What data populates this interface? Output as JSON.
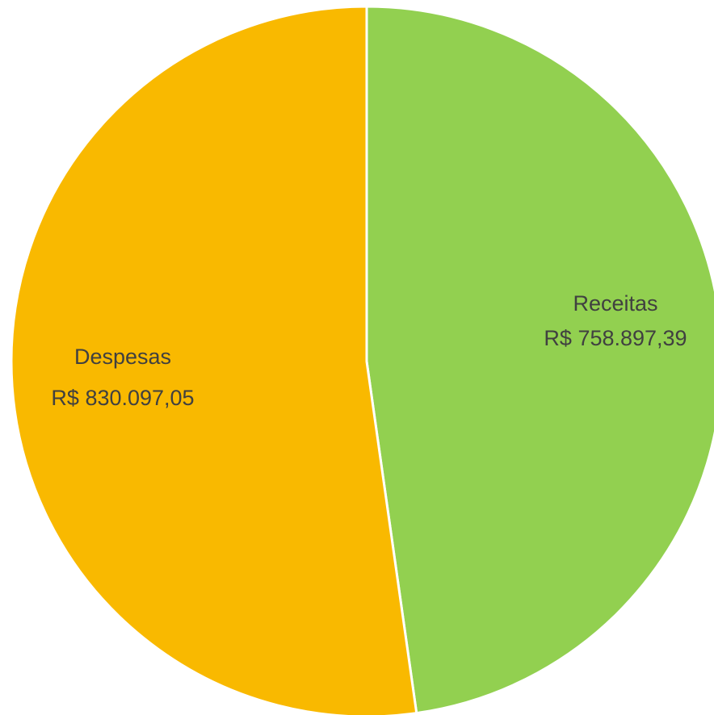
{
  "chart_data": {
    "type": "pie",
    "title": "",
    "slices": [
      {
        "name": "Receitas",
        "value_label": "R$ 758.897,39",
        "value": 758897.39,
        "color": "#92d050"
      },
      {
        "name": "Despesas",
        "value_label": "R$ 830.097,05",
        "value": 830097.05,
        "color": "#f9b900"
      }
    ],
    "start_angle_deg": 0,
    "direction": "clockwise",
    "slice_border_color": "#ffffff",
    "legend": "none",
    "data_labels": "inside"
  }
}
